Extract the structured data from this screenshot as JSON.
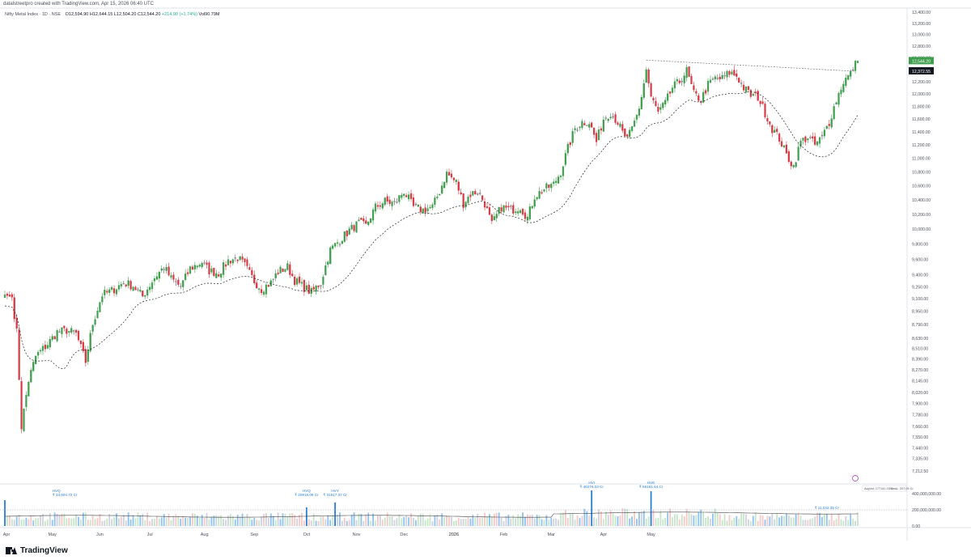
{
  "header": {
    "credit": "datalstreetpro created with TradingView.com, Apr 15, 2026 06:40 UTC"
  },
  "legend": {
    "symbol": "Nifty Metal Index · 1D · NSE",
    "open": "O12,594.90",
    "high": "H12,644.15",
    "low": "L12,504.20",
    "close": "C12,544.20",
    "change": "+214.90 (+1.74%)",
    "volume": "Vol90.79M"
  },
  "footer": {
    "brand": "TradingView"
  },
  "colors": {
    "up": "#3f9e4d",
    "down": "#d63844",
    "doji": "#ffffff",
    "vol_up": "#c7e6c9",
    "vol_down": "#f6c9c9",
    "vol_neutral": "#cfd3dc",
    "vol_hi": "#90c3f0",
    "vol_highlight": "#2a7fd4",
    "ma": "#222222",
    "trend": "#777777",
    "price_tag": "#3f9e4d",
    "ma_tag": "#131722"
  },
  "chart_data": {
    "type": "candlestick",
    "title": "Nifty Metal Index · 1D · NSE",
    "price_axis": {
      "ticks": [
        "13,400.00",
        "13,200.00",
        "13,000.00",
        "12,800.00",
        "12,600.00",
        "12,400.00",
        "12,200.00",
        "12,000.00",
        "11,800.00",
        "11,600.00",
        "11,400.00",
        "11,200.00",
        "11,000.00",
        "10,800.00",
        "10,600.00",
        "10,400.00",
        "10,200.00",
        "10,000.00",
        "9,800.00",
        "9,600.00",
        "9,400.00",
        "9,250.00",
        "9,100.00",
        "8,950.00",
        "8,790.00",
        "8,630.00",
        "8,510.00",
        "8,390.00",
        "8,270.00",
        "8,145.00",
        "8,020.00",
        "7,900.00",
        "7,780.00",
        "7,660.00",
        "7,550.00",
        "7,440.00",
        "7,335.00",
        "7,212.50"
      ],
      "scale": "log",
      "range": [
        7212.5,
        13400
      ]
    },
    "time_axis": {
      "labels": [
        "Apr",
        "May",
        "Jun",
        "Jul",
        "Aug",
        "Sep",
        "Oct",
        "Nov",
        "Dec",
        "2026",
        "Feb",
        "Mar",
        "Apr",
        "May"
      ]
    },
    "last_price_label": "12,544.20",
    "ma_label": "12,372.55",
    "ma_type": "dashed moving average",
    "volume_axis": {
      "ticks": [
        "400,000,000.00",
        "200,000,000.00",
        "0.00"
      ]
    },
    "volume_info": {
      "avg": "AvgVol: 177141.03 Cr",
      "sma": "SmaL: 207.09 Cr"
    },
    "volume_annotations": [
      {
        "label": "HVQ",
        "value": "₹ 33,904.72 Cr",
        "month": "Apr"
      },
      {
        "label": "HVQ",
        "value": "₹ 20918.08 Cr",
        "month": "Oct"
      },
      {
        "label": "HVY",
        "value": "₹ 31517.37 Cr",
        "month": "Oct"
      },
      {
        "label": "HVI",
        "value": "₹ 46276.03 Cr",
        "month": "Jan"
      },
      {
        "label": "HVE",
        "value": "₹ 56161.64 Cr",
        "month": "Jan"
      },
      {
        "label": "",
        "value": "₹ 11,042.35 Cr",
        "month": "Apr"
      }
    ],
    "anchors": [
      [
        0,
        9150
      ],
      [
        3,
        9120
      ],
      [
        5,
        8700
      ],
      [
        7,
        7660
      ],
      [
        10,
        8150
      ],
      [
        13,
        8420
      ],
      [
        18,
        8560
      ],
      [
        22,
        8700
      ],
      [
        26,
        8720
      ],
      [
        30,
        8680
      ],
      [
        34,
        8360
      ],
      [
        37,
        8800
      ],
      [
        41,
        9150
      ],
      [
        45,
        9200
      ],
      [
        50,
        9300
      ],
      [
        54,
        9260
      ],
      [
        58,
        9130
      ],
      [
        63,
        9360
      ],
      [
        67,
        9500
      ],
      [
        70,
        9350
      ],
      [
        74,
        9250
      ],
      [
        78,
        9480
      ],
      [
        83,
        9560
      ],
      [
        86,
        9450
      ],
      [
        90,
        9420
      ],
      [
        94,
        9580
      ],
      [
        98,
        9620
      ],
      [
        101,
        9520
      ],
      [
        105,
        9320
      ],
      [
        108,
        9220
      ],
      [
        112,
        9300
      ],
      [
        115,
        9440
      ],
      [
        119,
        9500
      ],
      [
        122,
        9330
      ],
      [
        125,
        9260
      ],
      [
        129,
        9180
      ],
      [
        133,
        9300
      ],
      [
        137,
        9720
      ],
      [
        141,
        9850
      ],
      [
        145,
        9980
      ],
      [
        149,
        10080
      ],
      [
        152,
        10040
      ],
      [
        156,
        10300
      ],
      [
        160,
        10380
      ],
      [
        164,
        10350
      ],
      [
        168,
        10520
      ],
      [
        172,
        10300
      ],
      [
        176,
        10260
      ],
      [
        180,
        10300
      ],
      [
        183,
        10520
      ],
      [
        186,
        10780
      ],
      [
        190,
        10650
      ],
      [
        193,
        10350
      ],
      [
        196,
        10480
      ],
      [
        199,
        10520
      ],
      [
        202,
        10350
      ],
      [
        205,
        10060
      ],
      [
        209,
        10300
      ],
      [
        213,
        10260
      ],
      [
        217,
        10300
      ],
      [
        220,
        10150
      ],
      [
        223,
        10450
      ],
      [
        227,
        10550
      ],
      [
        231,
        10620
      ],
      [
        234,
        10800
      ],
      [
        237,
        11150
      ],
      [
        240,
        11450
      ],
      [
        243,
        11550
      ],
      [
        246,
        11550
      ],
      [
        249,
        11250
      ],
      [
        252,
        11600
      ],
      [
        255,
        11700
      ],
      [
        258,
        11550
      ],
      [
        261,
        11300
      ],
      [
        264,
        11420
      ],
      [
        267,
        11750
      ],
      [
        270,
        12400
      ],
      [
        272,
        11950
      ],
      [
        275,
        11700
      ],
      [
        278,
        11850
      ],
      [
        281,
        12100
      ],
      [
        284,
        12200
      ],
      [
        287,
        12380
      ],
      [
        290,
        12000
      ],
      [
        293,
        11900
      ],
      [
        296,
        12150
      ],
      [
        299,
        12250
      ],
      [
        302,
        12250
      ],
      [
        305,
        12350
      ],
      [
        308,
        12300
      ],
      [
        311,
        12100
      ],
      [
        314,
        11980
      ],
      [
        317,
        11950
      ],
      [
        320,
        11700
      ],
      [
        323,
        11450
      ],
      [
        326,
        11300
      ],
      [
        329,
        11050
      ],
      [
        332,
        10880
      ],
      [
        335,
        11250
      ],
      [
        338,
        11320
      ],
      [
        341,
        11200
      ],
      [
        344,
        11320
      ],
      [
        347,
        11550
      ],
      [
        350,
        11900
      ],
      [
        353,
        12200
      ],
      [
        356,
        12330
      ],
      [
        358,
        12544
      ]
    ]
  }
}
